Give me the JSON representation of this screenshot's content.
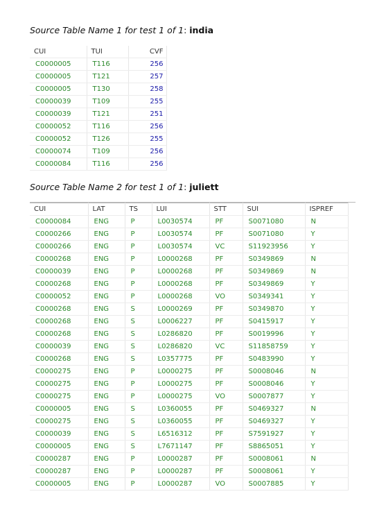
{
  "caption1": {
    "prefix": "Source Table Name 1 for test 1 of 1",
    "sep": ": ",
    "name": "india"
  },
  "caption2": {
    "prefix": "Source Table Name 2 for test 1 of 1",
    "sep": ": ",
    "name": "juliett"
  },
  "table1": {
    "columns": [
      "CUI",
      "TUI",
      "CVF"
    ],
    "rows": [
      [
        "C0000005",
        "T116",
        "256"
      ],
      [
        "C0000005",
        "T121",
        "257"
      ],
      [
        "C0000005",
        "T130",
        "258"
      ],
      [
        "C0000039",
        "T109",
        "255"
      ],
      [
        "C0000039",
        "T121",
        "251"
      ],
      [
        "C0000052",
        "T116",
        "256"
      ],
      [
        "C0000052",
        "T126",
        "255"
      ],
      [
        "C0000074",
        "T109",
        "256"
      ],
      [
        "C0000084",
        "T116",
        "256"
      ]
    ]
  },
  "table2": {
    "columns": [
      "CUI",
      "LAT",
      "TS",
      "LUI",
      "STT",
      "SUI",
      "ISPREF"
    ],
    "rows": [
      [
        "C0000084",
        "ENG",
        "P",
        "L0030574",
        "PF",
        "S0071080",
        "N"
      ],
      [
        "C0000266",
        "ENG",
        "P",
        "L0030574",
        "PF",
        "S0071080",
        "Y"
      ],
      [
        "C0000266",
        "ENG",
        "P",
        "L0030574",
        "VC",
        "S11923956",
        "Y"
      ],
      [
        "C0000268",
        "ENG",
        "P",
        "L0000268",
        "PF",
        "S0349869",
        "N"
      ],
      [
        "C0000039",
        "ENG",
        "P",
        "L0000268",
        "PF",
        "S0349869",
        "N"
      ],
      [
        "C0000268",
        "ENG",
        "P",
        "L0000268",
        "PF",
        "S0349869",
        "Y"
      ],
      [
        "C0000052",
        "ENG",
        "P",
        "L0000268",
        "VO",
        "S0349341",
        "Y"
      ],
      [
        "C0000268",
        "ENG",
        "S",
        "L0000269",
        "PF",
        "S0349870",
        "Y"
      ],
      [
        "C0000268",
        "ENG",
        "S",
        "L0006227",
        "PF",
        "S0415917",
        "Y"
      ],
      [
        "C0000268",
        "ENG",
        "S",
        "L0286820",
        "PF",
        "S0019996",
        "Y"
      ],
      [
        "C0000039",
        "ENG",
        "S",
        "L0286820",
        "VC",
        "S11858759",
        "Y"
      ],
      [
        "C0000268",
        "ENG",
        "S",
        "L0357775",
        "PF",
        "S0483990",
        "Y"
      ],
      [
        "C0000275",
        "ENG",
        "P",
        "L0000275",
        "PF",
        "S0008046",
        "N"
      ],
      [
        "C0000275",
        "ENG",
        "P",
        "L0000275",
        "PF",
        "S0008046",
        "Y"
      ],
      [
        "C0000275",
        "ENG",
        "P",
        "L0000275",
        "VO",
        "S0007877",
        "Y"
      ],
      [
        "C0000005",
        "ENG",
        "S",
        "L0360055",
        "PF",
        "S0469327",
        "N"
      ],
      [
        "C0000275",
        "ENG",
        "S",
        "L0360055",
        "PF",
        "S0469327",
        "Y"
      ],
      [
        "C0000039",
        "ENG",
        "S",
        "L6516312",
        "PF",
        "S7591927",
        "Y"
      ],
      [
        "C0000005",
        "ENG",
        "S",
        "L7671147",
        "PF",
        "S8865051",
        "Y"
      ],
      [
        "C0000287",
        "ENG",
        "P",
        "L0000287",
        "PF",
        "S0008061",
        "N"
      ],
      [
        "C0000287",
        "ENG",
        "P",
        "L0000287",
        "PF",
        "S0008061",
        "Y"
      ],
      [
        "C0000005",
        "ENG",
        "P",
        "L0000287",
        "VO",
        "S0007885",
        "Y"
      ]
    ]
  },
  "colors": {
    "cell_text": "#2c8a2c",
    "numeric_text": "#1a1aa8",
    "header_text": "#333333"
  }
}
